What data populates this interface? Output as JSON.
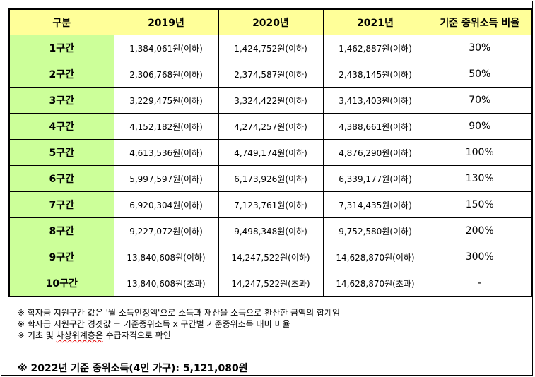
{
  "table": {
    "headers": [
      "구분",
      "2019년",
      "2020년",
      "2021년",
      "기준 중위소득 비율"
    ],
    "rows": [
      {
        "tier": "1구간",
        "y2019": "1,384,061원(이하)",
        "y2020": "1,424,752원(이하)",
        "y2021": "1,462,887원(이하)",
        "ratio": "30%"
      },
      {
        "tier": "2구간",
        "y2019": "2,306,768원(이하)",
        "y2020": "2,374,587원(이하)",
        "y2021": "2,438,145원(이하)",
        "ratio": "50%"
      },
      {
        "tier": "3구간",
        "y2019": "3,229,475원(이하)",
        "y2020": "3,324,422원(이하)",
        "y2021": "3,413,403원(이하)",
        "ratio": "70%"
      },
      {
        "tier": "4구간",
        "y2019": "4,152,182원(이하)",
        "y2020": "4,274,257원(이하)",
        "y2021": "4,388,661원(이하)",
        "ratio": "90%"
      },
      {
        "tier": "5구간",
        "y2019": "4,613,536원(이하)",
        "y2020": "4,749,174원(이하)",
        "y2021": "4,876,290원(이하)",
        "ratio": "100%"
      },
      {
        "tier": "6구간",
        "y2019": "5,997,597원(이하)",
        "y2020": "6,173,926원(이하)",
        "y2021": "6,339,177원(이하)",
        "ratio": "130%"
      },
      {
        "tier": "7구간",
        "y2019": "6,920,304원(이하)",
        "y2020": "7,123,761원(이하)",
        "y2021": "7,314,435원(이하)",
        "ratio": "150%"
      },
      {
        "tier": "8구간",
        "y2019": "9,227,072원(이하)",
        "y2020": "9,498,348원(이하)",
        "y2021": "9,752,580원(이하)",
        "ratio": "200%"
      },
      {
        "tier": "9구간",
        "y2019": "13,840,608원(이하)",
        "y2020": "14,247,522원(이하)",
        "y2021": "14,628,870원(이하)",
        "ratio": "300%"
      },
      {
        "tier": "10구간",
        "y2019": "13,840,608원(초과)",
        "y2020": "14,247,522원(초과)",
        "y2021": "14,628,870원(초과)",
        "ratio": "-"
      }
    ]
  },
  "notes": {
    "line1": "※ 학자금 지원구간 값은 '월 소득인정액'으로 소득과 재산을 소득으로 환산한 금액의 합계임",
    "line2": "※ 학자금 지원구간 경곗값 = 기준중위소득 x 구간별 기준중위소득 대비 비율",
    "line3_prefix": "※ 기초 및 ",
    "line3_marked": "차상위계층은",
    "line3_suffix": " 수급자격으로 확인"
  },
  "summary": "※ 2022년 기준 중위소득(4인 가구): 5,121,080원"
}
